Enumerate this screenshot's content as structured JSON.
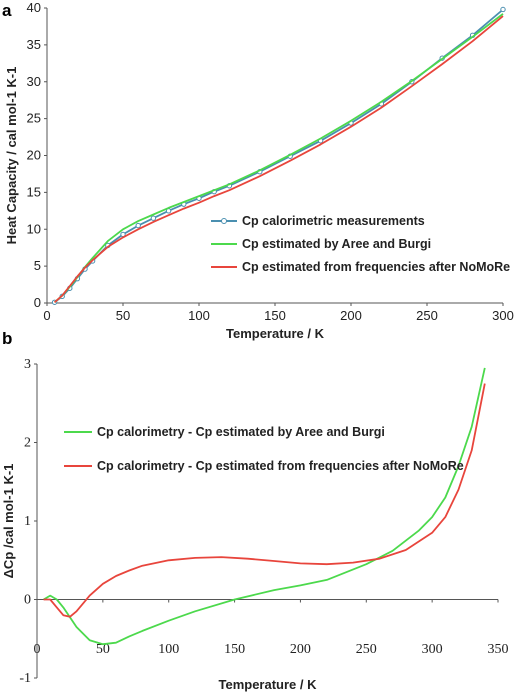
{
  "chart_data": [
    {
      "panel": "a",
      "type": "line",
      "xlabel": "Temperature / K",
      "ylabel": "Heat Capacity / cal mol-1 K-1",
      "xlim": [
        0,
        300
      ],
      "ylim": [
        0,
        40
      ],
      "xticks": [
        "0",
        "50",
        "100",
        "150",
        "200",
        "250",
        "300"
      ],
      "yticks": [
        "0",
        "5",
        "10",
        "15",
        "20",
        "25",
        "30",
        "35",
        "40"
      ],
      "legend_position": "center-right",
      "series": [
        {
          "name": "Cp calorimetric measurements",
          "color": "#4a8fb0",
          "marker": "circle",
          "x": [
            5,
            10,
            15,
            20,
            25,
            30,
            40,
            50,
            60,
            70,
            80,
            90,
            100,
            110,
            120,
            140,
            160,
            180,
            200,
            220,
            240,
            260,
            280,
            300
          ],
          "y": [
            0.1,
            0.9,
            2.0,
            3.3,
            4.6,
            5.7,
            7.8,
            9.3,
            10.5,
            11.5,
            12.5,
            13.4,
            14.2,
            15.1,
            15.9,
            17.8,
            19.9,
            22.0,
            24.4,
            27.0,
            30.0,
            33.2,
            36.3,
            39.8
          ]
        },
        {
          "name": "Cp estimated by Aree and Burgi",
          "color": "#4cd94c",
          "x": [
            5,
            10,
            15,
            20,
            25,
            30,
            40,
            50,
            60,
            70,
            80,
            90,
            100,
            110,
            120,
            140,
            160,
            180,
            200,
            220,
            240,
            260,
            280,
            300
          ],
          "y": [
            0.1,
            1.0,
            2.2,
            3.5,
            4.9,
            6.1,
            8.4,
            10.0,
            11.1,
            12.0,
            12.9,
            13.7,
            14.5,
            15.3,
            16.1,
            18.0,
            20.1,
            22.3,
            24.7,
            27.3,
            30.1,
            33.1,
            36.1,
            39.2
          ]
        },
        {
          "name": "Cp estimated from frequencies after NoMoRe",
          "color": "#e8453c",
          "x": [
            5,
            10,
            15,
            20,
            25,
            30,
            40,
            50,
            60,
            70,
            80,
            90,
            100,
            110,
            120,
            140,
            160,
            180,
            200,
            220,
            240,
            260,
            280,
            300
          ],
          "y": [
            0.1,
            1.0,
            2.3,
            3.6,
            4.8,
            5.8,
            7.6,
            8.9,
            10.0,
            11.0,
            11.9,
            12.8,
            13.6,
            14.5,
            15.3,
            17.2,
            19.3,
            21.5,
            23.9,
            26.5,
            29.4,
            32.4,
            35.5,
            38.9
          ]
        }
      ]
    },
    {
      "panel": "b",
      "type": "line",
      "xlabel": "Temperature / K",
      "ylabel": "ΔCp /cal mol-1 K-1",
      "xlim": [
        0,
        350
      ],
      "ylim": [
        -1,
        3
      ],
      "xticks": [
        "0",
        "50",
        "100",
        "150",
        "200",
        "250",
        "300",
        "350"
      ],
      "yticks": [
        "-1",
        "0",
        "1",
        "2",
        "3"
      ],
      "legend_position": "top-left",
      "series": [
        {
          "name": "Cp calorimetry - Cp estimated by Aree and Burgi",
          "color": "#4cd94c",
          "x": [
            5,
            10,
            15,
            20,
            30,
            40,
            50,
            60,
            70,
            80,
            100,
            120,
            150,
            180,
            200,
            220,
            250,
            270,
            290,
            300,
            310,
            320,
            330,
            340
          ],
          "y": [
            0.0,
            0.05,
            0.0,
            -0.1,
            -0.35,
            -0.52,
            -0.57,
            -0.55,
            -0.47,
            -0.4,
            -0.27,
            -0.15,
            0.0,
            0.12,
            0.18,
            0.25,
            0.45,
            0.62,
            0.88,
            1.05,
            1.3,
            1.7,
            2.2,
            2.95
          ]
        },
        {
          "name": "Cp calorimetry - Cp estimated from frequencies after NoMoRe",
          "color": "#e8453c",
          "x": [
            5,
            10,
            15,
            20,
            25,
            30,
            40,
            50,
            60,
            70,
            80,
            100,
            120,
            140,
            160,
            180,
            200,
            220,
            240,
            260,
            280,
            300,
            310,
            320,
            330,
            340
          ],
          "y": [
            0.0,
            0.0,
            -0.1,
            -0.2,
            -0.22,
            -0.15,
            0.05,
            0.2,
            0.3,
            0.37,
            0.43,
            0.5,
            0.53,
            0.54,
            0.52,
            0.49,
            0.46,
            0.45,
            0.47,
            0.52,
            0.63,
            0.85,
            1.05,
            1.4,
            1.9,
            2.75
          ]
        }
      ]
    }
  ]
}
